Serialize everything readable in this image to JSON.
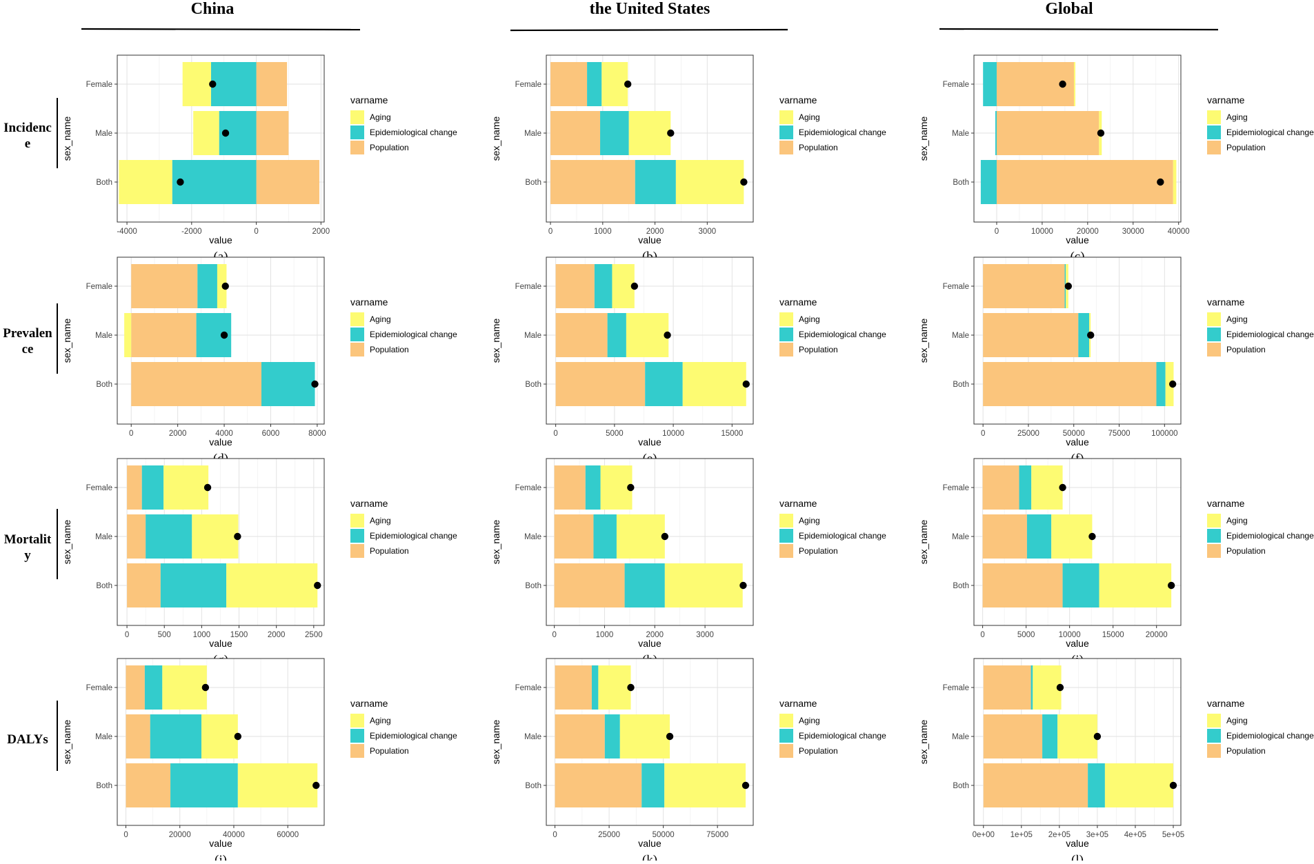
{
  "column_titles": [
    "China",
    "the United States",
    "Global"
  ],
  "row_labels": [
    [
      "Incidenc",
      "e"
    ],
    [
      "Prevalen",
      "ce"
    ],
    [
      "Mortalit",
      "y"
    ],
    [
      "DALYs"
    ]
  ],
  "colors": {
    "Aging": "#FDFB72",
    "Epidemiological change": "#33CCCC",
    "Population": "#FBC57C",
    "point": "#000000"
  },
  "chart_data": [
    {
      "type": "bar",
      "panel_label": "(a)",
      "xlabel": "value",
      "ylabel": "sex_name",
      "legend_title": "varname",
      "legend": [
        "Aging",
        "Epidemiological change",
        "Population"
      ],
      "xlim": [
        -4300,
        2100
      ],
      "xticks": [
        -4000,
        -2000,
        0,
        2000
      ],
      "xtick_labels": [
        "-4000",
        "-2000",
        "0",
        "2000"
      ],
      "categories": [
        "Female",
        "Male",
        "Both"
      ],
      "bars": {
        "Female": {
          "Epidemiological change": -1400,
          "Aging": -880,
          "Population": 950,
          "total": -1350
        },
        "Male": {
          "Epidemiological change": -1150,
          "Aging": -800,
          "Population": 1000,
          "total": -950
        },
        "Both": {
          "Epidemiological change": -2600,
          "Aging": -1650,
          "Population": 1950,
          "total": -2350
        }
      }
    },
    {
      "type": "bar",
      "panel_label": "(b)",
      "xlabel": "value",
      "ylabel": "sex_name",
      "legend_title": "varname",
      "legend": [
        "Aging",
        "Epidemiological change",
        "Population"
      ],
      "xlim": [
        -80,
        3880
      ],
      "xticks": [
        0,
        1000,
        2000,
        3000
      ],
      "xtick_labels": [
        "0",
        "1000",
        "2000",
        "3000"
      ],
      "categories": [
        "Female",
        "Male",
        "Both"
      ],
      "bars": {
        "Female": {
          "Population": 700,
          "Epidemiological change": 280,
          "Aging": 500,
          "total": 1480
        },
        "Male": {
          "Population": 950,
          "Epidemiological change": 550,
          "Aging": 800,
          "total": 2300
        },
        "Both": {
          "Population": 1620,
          "Epidemiological change": 780,
          "Aging": 1300,
          "total": 3700
        }
      }
    },
    {
      "type": "bar",
      "panel_label": "(c)",
      "xlabel": "value",
      "ylabel": "sex_name",
      "legend_title": "varname",
      "legend": [
        "Aging",
        "Epidemiological change",
        "Population"
      ],
      "xlim": [
        -5000,
        40500
      ],
      "xticks": [
        0,
        10000,
        20000,
        30000,
        40000
      ],
      "xtick_labels": [
        "0",
        "10000",
        "20000",
        "30000",
        "40000"
      ],
      "categories": [
        "Female",
        "Male",
        "Both"
      ],
      "bars": {
        "Female": {
          "Epidemiological change": -3000,
          "Population": 17000,
          "Aging": 300,
          "total": 14500
        },
        "Male": {
          "Epidemiological change": -300,
          "Population": 22500,
          "Aging": 600,
          "total": 22900
        },
        "Both": {
          "Epidemiological change": -3500,
          "Population": 38800,
          "Aging": 700,
          "total": 36000
        }
      }
    },
    {
      "type": "bar",
      "panel_label": "(d)",
      "xlabel": "value",
      "ylabel": "sex_name",
      "legend_title": "varname",
      "legend": [
        "Aging",
        "Epidemiological change",
        "Population"
      ],
      "xlim": [
        -600,
        8300
      ],
      "xticks": [
        0,
        2000,
        4000,
        6000,
        8000
      ],
      "xtick_labels": [
        "0",
        "2000",
        "4000",
        "6000",
        "8000"
      ],
      "categories": [
        "Female",
        "Male",
        "Both"
      ],
      "bars": {
        "Female": {
          "Population": 2850,
          "Epidemiological change": 850,
          "Aging": 400,
          "total": 4050
        },
        "Male": {
          "Aging": -300,
          "Population": 2800,
          "Epidemiological change": 1500,
          "total": 4000
        },
        "Both": {
          "Population": 5600,
          "Epidemiological change": 2300,
          "Aging": 0,
          "total": 7900
        }
      }
    },
    {
      "type": "bar",
      "panel_label": "(e)",
      "xlabel": "value",
      "ylabel": "sex_name",
      "legend_title": "varname",
      "legend": [
        "Aging",
        "Epidemiological change",
        "Population"
      ],
      "xlim": [
        -800,
        16800
      ],
      "xticks": [
        0,
        5000,
        10000,
        15000
      ],
      "xtick_labels": [
        "0",
        "5000",
        "10000",
        "15000"
      ],
      "categories": [
        "Female",
        "Male",
        "Both"
      ],
      "bars": {
        "Female": {
          "Population": 3300,
          "Epidemiological change": 1500,
          "Aging": 1900,
          "total": 6700
        },
        "Male": {
          "Population": 4400,
          "Epidemiological change": 1600,
          "Aging": 3600,
          "total": 9500
        },
        "Both": {
          "Population": 7600,
          "Epidemiological change": 3200,
          "Aging": 5400,
          "total": 16200
        }
      }
    },
    {
      "type": "bar",
      "panel_label": "(f)",
      "xlabel": "value",
      "ylabel": "sex_name",
      "legend_title": "varname",
      "legend": [
        "Aging",
        "Epidemiological change",
        "Population"
      ],
      "xlim": [
        -5000,
        109000
      ],
      "xticks": [
        0,
        25000,
        50000,
        75000,
        100000
      ],
      "xtick_labels": [
        "0",
        "25000",
        "50000",
        "75000",
        "100000"
      ],
      "categories": [
        "Female",
        "Male",
        "Both"
      ],
      "bars": {
        "Female": {
          "Population": 45000,
          "Epidemiological change": 600,
          "Aging": 1400,
          "total": 47000
        },
        "Male": {
          "Population": 52500,
          "Epidemiological change": 6000,
          "Aging": 800,
          "total": 59300
        },
        "Both": {
          "Population": 95500,
          "Epidemiological change": 5000,
          "Aging": 4500,
          "total": 104500
        }
      }
    },
    {
      "type": "bar",
      "panel_label": "(g)",
      "xlabel": "value",
      "ylabel": "sex_name",
      "legend_title": "varname",
      "legend": [
        "Aging",
        "Epidemiological change",
        "Population"
      ],
      "xlim": [
        -130,
        2640
      ],
      "xticks": [
        0,
        500,
        1000,
        1500,
        2000,
        2500
      ],
      "xtick_labels": [
        "0",
        "500",
        "1000",
        "1500",
        "2000",
        "2500"
      ],
      "categories": [
        "Female",
        "Male",
        "Both"
      ],
      "bars": {
        "Female": {
          "Population": 200,
          "Epidemiological change": 290,
          "Aging": 600,
          "total": 1080
        },
        "Male": {
          "Population": 250,
          "Epidemiological change": 620,
          "Aging": 620,
          "total": 1480
        },
        "Both": {
          "Population": 450,
          "Epidemiological change": 880,
          "Aging": 1220,
          "total": 2550
        }
      }
    },
    {
      "type": "bar",
      "panel_label": "(h)",
      "xlabel": "value",
      "ylabel": "sex_name",
      "legend_title": "varname",
      "legend": [
        "Aging",
        "Epidemiological change",
        "Population"
      ],
      "xlim": [
        -160,
        3960
      ],
      "xticks": [
        0,
        1000,
        2000,
        3000
      ],
      "xtick_labels": [
        "0",
        "1000",
        "2000",
        "3000"
      ],
      "categories": [
        "Female",
        "Male",
        "Both"
      ],
      "bars": {
        "Female": {
          "Population": 620,
          "Epidemiological change": 300,
          "Aging": 630,
          "total": 1520
        },
        "Male": {
          "Population": 780,
          "Epidemiological change": 460,
          "Aging": 960,
          "total": 2200
        },
        "Both": {
          "Population": 1400,
          "Epidemiological change": 800,
          "Aging": 1550,
          "total": 3760
        }
      }
    },
    {
      "type": "bar",
      "panel_label": "(i)",
      "xlabel": "value",
      "ylabel": "sex_name",
      "legend_title": "varname",
      "legend": [
        "Aging",
        "Epidemiological change",
        "Population"
      ],
      "xlim": [
        -1000,
        22800
      ],
      "xticks": [
        0,
        5000,
        10000,
        15000,
        20000
      ],
      "xtick_labels": [
        "0",
        "5000",
        "10000",
        "15000",
        "20000"
      ],
      "categories": [
        "Female",
        "Male",
        "Both"
      ],
      "bars": {
        "Female": {
          "Population": 4200,
          "Epidemiological change": 1400,
          "Aging": 3600,
          "total": 9200
        },
        "Male": {
          "Population": 5100,
          "Epidemiological change": 2800,
          "Aging": 4700,
          "total": 12600
        },
        "Both": {
          "Population": 9200,
          "Epidemiological change": 4200,
          "Aging": 8300,
          "total": 21700
        }
      }
    },
    {
      "type": "bar",
      "panel_label": "(j)",
      "xlabel": "value",
      "ylabel": "sex_name",
      "legend_title": "varname",
      "legend": [
        "Aging",
        "Epidemiological change",
        "Population"
      ],
      "xlim": [
        -3200,
        73500
      ],
      "xticks": [
        0,
        20000,
        40000,
        60000
      ],
      "xtick_labels": [
        "0",
        "20000",
        "40000",
        "60000"
      ],
      "categories": [
        "Female",
        "Male",
        "Both"
      ],
      "bars": {
        "Female": {
          "Population": 7000,
          "Epidemiological change": 6500,
          "Aging": 16500,
          "total": 29500
        },
        "Male": {
          "Population": 9000,
          "Epidemiological change": 19000,
          "Aging": 13500,
          "total": 41500
        },
        "Both": {
          "Population": 16500,
          "Epidemiological change": 25000,
          "Aging": 29500,
          "total": 70500
        }
      }
    },
    {
      "type": "bar",
      "panel_label": "(k)",
      "xlabel": "value",
      "ylabel": "sex_name",
      "legend_title": "varname",
      "legend": [
        "Aging",
        "Epidemiological change",
        "Population"
      ],
      "xlim": [
        -4000,
        91500
      ],
      "xticks": [
        0,
        25000,
        50000,
        75000
      ],
      "xtick_labels": [
        "0",
        "25000",
        "50000",
        "75000"
      ],
      "categories": [
        "Female",
        "Male",
        "Both"
      ],
      "bars": {
        "Female": {
          "Population": 17000,
          "Epidemiological change": 3000,
          "Aging": 15000,
          "total": 35000
        },
        "Male": {
          "Population": 23000,
          "Epidemiological change": 7000,
          "Aging": 23000,
          "total": 53000
        },
        "Both": {
          "Population": 40000,
          "Epidemiological change": 10500,
          "Aging": 37500,
          "total": 88000
        }
      }
    },
    {
      "type": "bar",
      "panel_label": "(l)",
      "xlabel": "value",
      "ylabel": "sex_name",
      "legend_title": "varname",
      "legend": [
        "Aging",
        "Epidemiological change",
        "Population"
      ],
      "xlim": [
        -25000,
        520000
      ],
      "xticks": [
        0,
        100000,
        200000,
        300000,
        400000,
        500000
      ],
      "xtick_labels": [
        "0e+00",
        "1e+05",
        "2e+05",
        "3e+05",
        "4e+05",
        "5e+05"
      ],
      "categories": [
        "Female",
        "Male",
        "Both"
      ],
      "bars": {
        "Female": {
          "Population": 125000,
          "Epidemiological change": 5000,
          "Aging": 75000,
          "total": 202000
        },
        "Male": {
          "Population": 155000,
          "Epidemiological change": 40000,
          "Aging": 105000,
          "total": 300000
        },
        "Both": {
          "Population": 275000,
          "Epidemiological change": 45000,
          "Aging": 180000,
          "total": 500000
        }
      }
    }
  ]
}
